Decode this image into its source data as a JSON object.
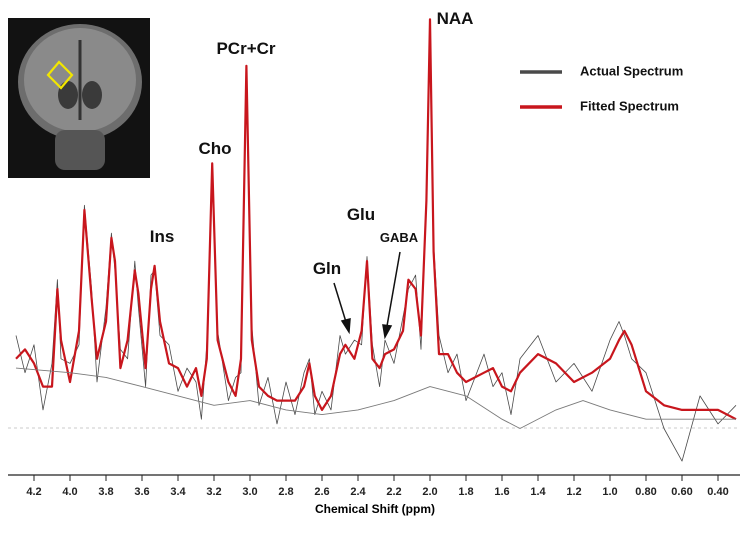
{
  "chart_data": {
    "type": "line",
    "x_label": "Chemical Shift (ppm)",
    "annotations": [
      "NAA",
      "PCr+Cr",
      "Cho",
      "Ins",
      "Glu",
      "GABA",
      "Gln"
    ],
    "xlim": [
      4.3,
      0.3
    ],
    "ylim": [
      0,
      100
    ],
    "xticks": [
      4.2,
      {
        "value": 4,
        "label": "4.0"
      },
      3.8,
      3.6,
      3.4,
      3.2,
      {
        "value": 3,
        "label": "3.0"
      },
      2.8,
      2.6,
      2.4,
      2.2,
      {
        "value": 2,
        "label": "2.0"
      },
      1.8,
      1.6,
      1.4,
      1.2,
      {
        "value": 1,
        "label": "1.0"
      },
      {
        "value": 0.8,
        "label": "0.80"
      },
      {
        "value": 0.6,
        "label": "0.60"
      },
      {
        "value": 0.4,
        "label": "0.40"
      }
    ],
    "legend": "upper right",
    "series": [
      {
        "name": "Actual Spectrum",
        "color": "#4a4a4a",
        "x": [
          4.3,
          4.25,
          4.2,
          4.15,
          4.1,
          4.07,
          4.05,
          4.0,
          3.95,
          3.92,
          3.88,
          3.85,
          3.8,
          3.77,
          3.75,
          3.72,
          3.68,
          3.64,
          3.62,
          3.58,
          3.55,
          3.53,
          3.5,
          3.45,
          3.4,
          3.35,
          3.3,
          3.27,
          3.24,
          3.21,
          3.18,
          3.12,
          3.08,
          3.05,
          3.02,
          2.99,
          2.95,
          2.9,
          2.85,
          2.8,
          2.75,
          2.7,
          2.67,
          2.64,
          2.6,
          2.55,
          2.5,
          2.47,
          2.42,
          2.38,
          2.35,
          2.32,
          2.28,
          2.25,
          2.2,
          2.15,
          2.12,
          2.08,
          2.05,
          2.02,
          2.0,
          1.98,
          1.95,
          1.9,
          1.85,
          1.8,
          1.7,
          1.65,
          1.6,
          1.55,
          1.5,
          1.4,
          1.3,
          1.2,
          1.1,
          1.0,
          0.95,
          0.92,
          0.88,
          0.8,
          0.7,
          0.6,
          0.5,
          0.4,
          0.3
        ],
        "values": [
          30,
          22,
          28,
          14,
          24,
          42,
          25,
          24,
          28,
          58,
          40,
          20,
          36,
          52,
          44,
          27,
          25,
          46,
          36,
          19,
          43,
          44,
          30,
          28,
          18,
          23,
          20,
          12,
          28,
          66,
          31,
          16,
          21,
          22,
          87,
          32,
          15,
          21,
          11,
          20,
          13,
          22,
          25,
          13,
          18,
          14,
          30,
          26,
          29,
          28,
          47,
          28,
          19,
          29,
          24,
          34,
          40,
          43,
          27,
          60,
          97,
          50,
          30,
          22,
          26,
          16,
          26,
          19,
          22,
          13,
          25,
          30,
          20,
          24,
          18,
          29,
          33,
          30,
          25,
          22,
          10,
          3,
          17,
          11,
          15
        ]
      },
      {
        "name": "Fitted Spectrum",
        "color": "#c8161d",
        "x": [
          4.3,
          4.25,
          4.2,
          4.15,
          4.1,
          4.07,
          4.05,
          4.0,
          3.95,
          3.92,
          3.88,
          3.85,
          3.8,
          3.77,
          3.75,
          3.72,
          3.68,
          3.64,
          3.62,
          3.58,
          3.55,
          3.53,
          3.5,
          3.45,
          3.4,
          3.35,
          3.3,
          3.27,
          3.24,
          3.21,
          3.18,
          3.12,
          3.08,
          3.05,
          3.02,
          2.99,
          2.95,
          2.9,
          2.85,
          2.8,
          2.75,
          2.7,
          2.67,
          2.64,
          2.6,
          2.55,
          2.5,
          2.47,
          2.42,
          2.38,
          2.35,
          2.32,
          2.28,
          2.25,
          2.2,
          2.15,
          2.12,
          2.08,
          2.05,
          2.02,
          2.0,
          1.98,
          1.95,
          1.9,
          1.85,
          1.8,
          1.7,
          1.65,
          1.6,
          1.55,
          1.5,
          1.4,
          1.3,
          1.2,
          1.1,
          1.0,
          0.95,
          0.92,
          0.88,
          0.8,
          0.7,
          0.6,
          0.5,
          0.4,
          0.3
        ],
        "values": [
          25,
          27,
          24,
          19,
          19,
          40,
          29,
          20,
          31,
          57,
          38,
          25,
          33,
          51,
          46,
          23,
          29,
          44,
          39,
          23,
          40,
          45,
          33,
          24,
          23,
          19,
          23,
          17,
          25,
          67,
          29,
          20,
          17,
          25,
          88,
          29,
          19,
          17,
          16,
          16,
          16,
          19,
          24,
          17,
          14,
          17,
          26,
          28,
          25,
          31,
          46,
          25,
          23,
          26,
          27,
          31,
          42,
          40,
          30,
          59,
          98,
          48,
          26,
          26,
          22,
          20,
          22,
          23,
          19,
          18,
          22,
          26,
          24,
          20,
          22,
          25,
          29,
          31,
          28,
          18,
          15,
          14,
          14,
          14,
          12
        ]
      },
      {
        "color": "#7a7a7a",
        "x": [
          4.3,
          4.0,
          3.8,
          3.6,
          3.4,
          3.2,
          3.0,
          2.8,
          2.6,
          2.4,
          2.2,
          2.0,
          1.8,
          1.6,
          1.5,
          1.3,
          1.15,
          1.0,
          0.8,
          0.6,
          0.4,
          0.3
        ],
        "values": [
          23,
          22,
          21,
          19,
          17,
          15,
          16,
          14,
          13,
          14,
          16,
          19,
          17,
          12,
          10,
          14,
          16,
          14,
          12,
          12,
          12,
          12
        ]
      }
    ]
  }
}
